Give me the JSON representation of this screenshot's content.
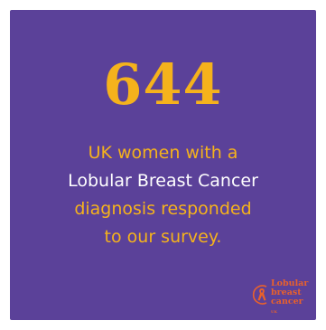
{
  "card": {
    "background": "#5b4199",
    "number": "644",
    "lines": [
      {
        "text": "UK women with a",
        "color": "#f5b21c"
      },
      {
        "text": "Lobular Breast Cancer",
        "color": "#ffffff"
      },
      {
        "text": "diagnosis responded",
        "color": "#f5b21c"
      },
      {
        "text": "to our survey.",
        "color": "#f5b21c"
      }
    ]
  },
  "logo": {
    "line1": "Lobular",
    "line2": "breast",
    "line3": "cancer",
    "mark": "UK",
    "color": "#e8612c",
    "icon": "ribbon-circle-icon"
  }
}
